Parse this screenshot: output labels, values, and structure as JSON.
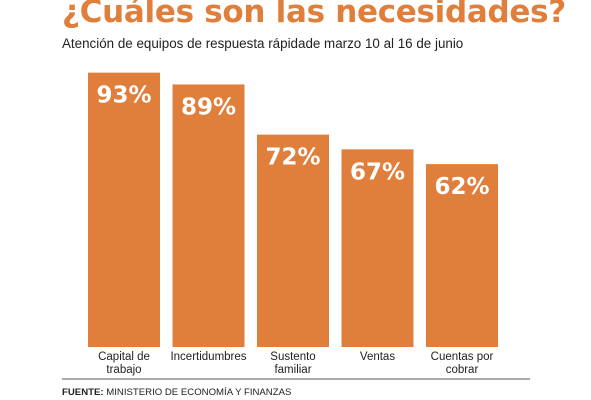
{
  "header": {
    "title": "¿Cuáles son las necesidades?",
    "subtitle": "Atención de equipos de respuesta rápidade marzo 10 al 16 de junio"
  },
  "footer": {
    "source_label": "FUENTE:",
    "source_text": " MINISTERIO DE ECONOMÍA Y FINANZAS"
  },
  "colors": {
    "bar": "#e07f3b",
    "title": "#e07f3b",
    "bar_label": "#ffffff"
  },
  "chart_data": {
    "type": "bar",
    "title": "¿Cuáles son las necesidades?",
    "subtitle": "Atención de equipos de respuesta rápidade marzo 10 al 16 de junio",
    "categories": [
      [
        "Capital de",
        "trabajo"
      ],
      [
        "Incertidumbres"
      ],
      [
        "Sustento",
        "familiar"
      ],
      [
        "Ventas"
      ],
      [
        "Cuentas por",
        "cobrar"
      ]
    ],
    "values": [
      93,
      89,
      72,
      67,
      62
    ],
    "value_labels": [
      "93%",
      "89%",
      "72%",
      "67%",
      "62%"
    ],
    "unit": "%",
    "ylim": [
      0,
      100
    ],
    "xlabel": "",
    "ylabel": "",
    "grid": false,
    "legend": "none"
  }
}
